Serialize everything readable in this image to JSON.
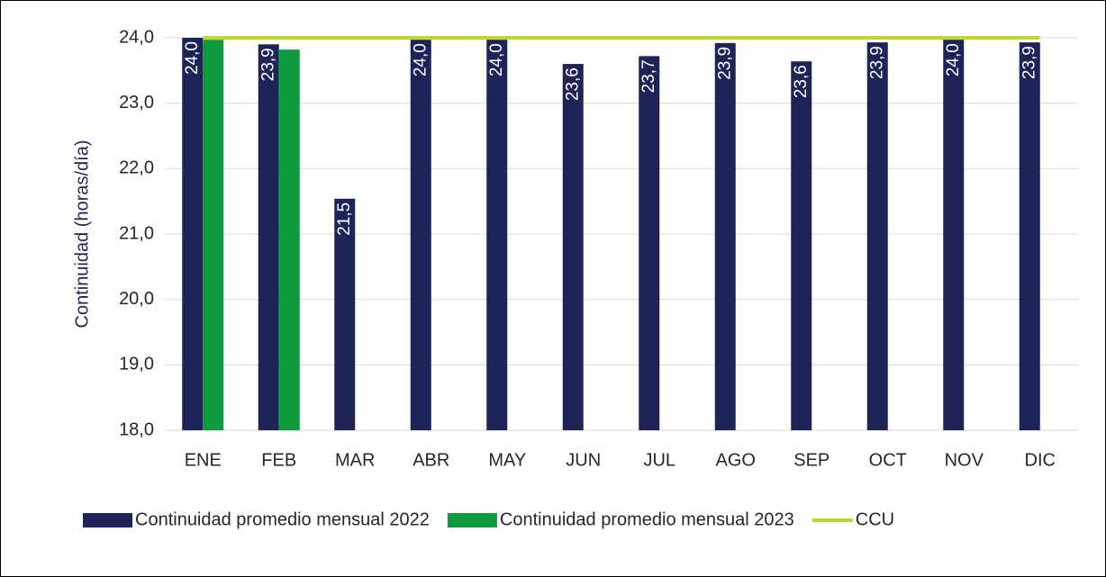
{
  "chart_data": {
    "type": "bar",
    "y_axis_label": "Continuidad (horas/día)",
    "categories": [
      "ENE",
      "FEB",
      "MAR",
      "ABR",
      "MAY",
      "JUN",
      "JUL",
      "AGO",
      "SEP",
      "OCT",
      "NOV",
      "DIC"
    ],
    "series": [
      {
        "name": "Continuidad promedio mensual 2022",
        "color": "#1f2458",
        "values": [
          24.0,
          23.9,
          21.54,
          23.97,
          23.97,
          23.6,
          23.72,
          23.92,
          23.64,
          23.93,
          23.97,
          23.93
        ],
        "value_labels": [
          "24,0",
          "23,9",
          "21,5",
          "24,0",
          "24,0",
          "23,6",
          "23,7",
          "23,9",
          "23,6",
          "23,9",
          "24,0",
          "23,9"
        ]
      },
      {
        "name": "Continuidad promedio mensual 2023",
        "color": "#0e9b3d",
        "values": [
          23.97,
          23.82,
          null,
          null,
          null,
          null,
          null,
          null,
          null,
          null,
          null,
          null
        ]
      },
      {
        "name": "CCU",
        "type": "line",
        "color": "#c0d62f",
        "values": [
          24.0,
          24.0,
          24.0,
          24.0,
          24.0,
          24.0,
          24.0,
          24.0,
          24.0,
          24.0,
          24.0,
          24.0
        ]
      }
    ],
    "ylim": [
      18,
      24
    ],
    "yticks": [
      {
        "value": 18,
        "label": "18,0"
      },
      {
        "value": 19,
        "label": "19,0"
      },
      {
        "value": 20,
        "label": "20,0"
      },
      {
        "value": 21,
        "label": "21,0"
      },
      {
        "value": 22,
        "label": "22,0"
      },
      {
        "value": 23,
        "label": "23,0"
      },
      {
        "value": 24,
        "label": "24,0"
      }
    ],
    "grid": true,
    "legend": "bottom"
  }
}
